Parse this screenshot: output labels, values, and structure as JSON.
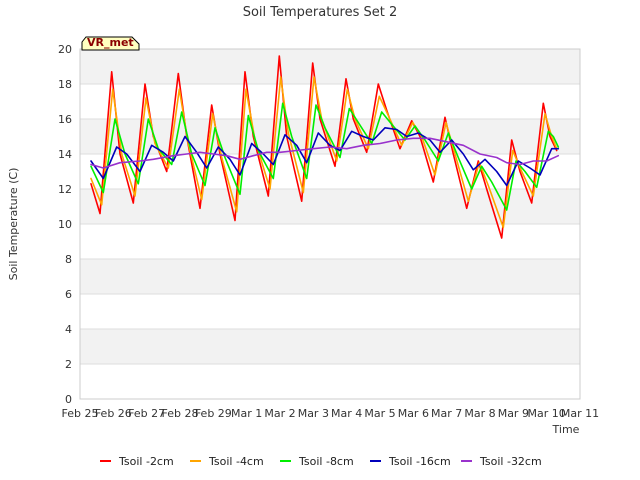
{
  "chart_data": {
    "type": "line",
    "title": "Soil Temperatures Set 2",
    "xlabel": "Time",
    "ylabel": "Soil Temperature (C)",
    "badge": "VR_met",
    "ylim": [
      0,
      20
    ],
    "yticks": [
      0,
      2,
      4,
      6,
      8,
      10,
      12,
      14,
      16,
      18,
      20
    ],
    "xlim": [
      0,
      15
    ],
    "xticks": [
      {
        "pos": 0,
        "label": "Feb 25"
      },
      {
        "pos": 1,
        "label": "Feb 26"
      },
      {
        "pos": 2,
        "label": "Feb 27"
      },
      {
        "pos": 3,
        "label": "Feb 28"
      },
      {
        "pos": 4,
        "label": "Feb 29"
      },
      {
        "pos": 5,
        "label": "Mar 1"
      },
      {
        "pos": 6,
        "label": "Mar 2"
      },
      {
        "pos": 7,
        "label": "Mar 3"
      },
      {
        "pos": 8,
        "label": "Mar 4"
      },
      {
        "pos": 9,
        "label": "Mar 5"
      },
      {
        "pos": 10,
        "label": "Mar 6"
      },
      {
        "pos": 11,
        "label": "Mar 7"
      },
      {
        "pos": 12,
        "label": "Mar 8"
      },
      {
        "pos": 13,
        "label": "Mar 9"
      },
      {
        "pos": 14,
        "label": "Mar 10"
      },
      {
        "pos": 15,
        "label": "Mar 11"
      }
    ],
    "grid": "horizontal bands",
    "legend_position": "bottom",
    "series": [
      {
        "name": "Tsoil -2cm",
        "color": "#ff0000",
        "points": [
          [
            0.33,
            12.3
          ],
          [
            0.6,
            10.6
          ],
          [
            0.95,
            18.7
          ],
          [
            1.2,
            14.0
          ],
          [
            1.6,
            11.2
          ],
          [
            1.95,
            18.0
          ],
          [
            2.2,
            15.0
          ],
          [
            2.6,
            13.0
          ],
          [
            2.95,
            18.6
          ],
          [
            3.2,
            15.0
          ],
          [
            3.6,
            10.9
          ],
          [
            3.95,
            16.8
          ],
          [
            4.2,
            14.0
          ],
          [
            4.65,
            10.2
          ],
          [
            4.95,
            18.7
          ],
          [
            5.2,
            15.0
          ],
          [
            5.65,
            11.6
          ],
          [
            5.98,
            19.6
          ],
          [
            6.2,
            15.0
          ],
          [
            6.65,
            11.3
          ],
          [
            6.98,
            19.2
          ],
          [
            7.2,
            16.0
          ],
          [
            7.65,
            13.3
          ],
          [
            7.98,
            18.3
          ],
          [
            8.2,
            16.0
          ],
          [
            8.6,
            14.1
          ],
          [
            8.95,
            18.0
          ],
          [
            9.2,
            16.5
          ],
          [
            9.6,
            14.3
          ],
          [
            9.95,
            15.9
          ],
          [
            10.2,
            15.0
          ],
          [
            10.6,
            12.4
          ],
          [
            10.95,
            16.1
          ],
          [
            11.2,
            14.0
          ],
          [
            11.6,
            10.9
          ],
          [
            11.95,
            13.6
          ],
          [
            12.2,
            12.0
          ],
          [
            12.65,
            9.2
          ],
          [
            12.95,
            14.8
          ],
          [
            13.2,
            13.0
          ],
          [
            13.55,
            11.2
          ],
          [
            13.9,
            16.9
          ],
          [
            14.1,
            15.0
          ],
          [
            14.3,
            14.2
          ]
        ]
      },
      {
        "name": "Tsoil -4cm",
        "color": "#ffa500",
        "points": [
          [
            0.33,
            12.6
          ],
          [
            0.65,
            11.1
          ],
          [
            0.98,
            17.7
          ],
          [
            1.25,
            14.0
          ],
          [
            1.65,
            11.6
          ],
          [
            1.98,
            17.2
          ],
          [
            2.25,
            14.6
          ],
          [
            2.65,
            13.2
          ],
          [
            2.98,
            17.7
          ],
          [
            3.25,
            14.6
          ],
          [
            3.65,
            11.4
          ],
          [
            3.98,
            16.3
          ],
          [
            4.25,
            13.8
          ],
          [
            4.7,
            10.7
          ],
          [
            4.98,
            17.7
          ],
          [
            5.25,
            14.8
          ],
          [
            5.7,
            12.0
          ],
          [
            6.02,
            18.4
          ],
          [
            6.25,
            15.2
          ],
          [
            6.7,
            11.8
          ],
          [
            7.02,
            18.4
          ],
          [
            7.25,
            16.0
          ],
          [
            7.7,
            13.6
          ],
          [
            8.02,
            17.7
          ],
          [
            8.25,
            16.0
          ],
          [
            8.65,
            14.3
          ],
          [
            8.98,
            17.3
          ],
          [
            9.25,
            16.2
          ],
          [
            9.65,
            14.5
          ],
          [
            9.98,
            15.8
          ],
          [
            10.25,
            15.0
          ],
          [
            10.65,
            12.8
          ],
          [
            10.98,
            15.8
          ],
          [
            11.25,
            14.0
          ],
          [
            11.65,
            11.3
          ],
          [
            11.98,
            13.5
          ],
          [
            12.25,
            12.2
          ],
          [
            12.7,
            9.8
          ],
          [
            12.98,
            14.2
          ],
          [
            13.25,
            13.0
          ],
          [
            13.6,
            11.6
          ],
          [
            13.95,
            16.3
          ],
          [
            14.15,
            15.0
          ],
          [
            14.3,
            14.3
          ]
        ]
      },
      {
        "name": "Tsoil -8cm",
        "color": "#00ee00",
        "points": [
          [
            0.33,
            13.3
          ],
          [
            0.7,
            11.8
          ],
          [
            1.05,
            16.0
          ],
          [
            1.35,
            14.0
          ],
          [
            1.75,
            12.3
          ],
          [
            2.05,
            16.0
          ],
          [
            2.35,
            14.3
          ],
          [
            2.75,
            13.4
          ],
          [
            3.05,
            16.4
          ],
          [
            3.35,
            14.0
          ],
          [
            3.75,
            12.2
          ],
          [
            4.05,
            15.5
          ],
          [
            4.35,
            13.8
          ],
          [
            4.8,
            11.7
          ],
          [
            5.05,
            16.2
          ],
          [
            5.35,
            14.2
          ],
          [
            5.8,
            12.6
          ],
          [
            6.08,
            16.9
          ],
          [
            6.35,
            15.0
          ],
          [
            6.8,
            12.6
          ],
          [
            7.08,
            16.8
          ],
          [
            7.35,
            15.5
          ],
          [
            7.8,
            13.8
          ],
          [
            8.08,
            16.6
          ],
          [
            8.35,
            15.8
          ],
          [
            8.75,
            14.6
          ],
          [
            9.05,
            16.4
          ],
          [
            9.35,
            15.7
          ],
          [
            9.75,
            14.8
          ],
          [
            10.05,
            15.6
          ],
          [
            10.35,
            14.8
          ],
          [
            10.75,
            13.6
          ],
          [
            11.05,
            15.2
          ],
          [
            11.35,
            13.8
          ],
          [
            11.75,
            12.0
          ],
          [
            12.05,
            13.3
          ],
          [
            12.35,
            12.4
          ],
          [
            12.8,
            10.8
          ],
          [
            13.08,
            13.6
          ],
          [
            13.35,
            13.0
          ],
          [
            13.7,
            12.1
          ],
          [
            14.05,
            15.3
          ],
          [
            14.2,
            15.0
          ],
          [
            14.35,
            14.4
          ]
        ]
      },
      {
        "name": "Tsoil -16cm",
        "color": "#0000bb",
        "points": [
          [
            0.33,
            13.6
          ],
          [
            0.7,
            12.6
          ],
          [
            1.1,
            14.4
          ],
          [
            1.4,
            14.0
          ],
          [
            1.8,
            13.0
          ],
          [
            2.15,
            14.5
          ],
          [
            2.5,
            14.1
          ],
          [
            2.8,
            13.6
          ],
          [
            3.15,
            15.0
          ],
          [
            3.5,
            14.1
          ],
          [
            3.8,
            13.2
          ],
          [
            4.15,
            14.4
          ],
          [
            4.5,
            13.7
          ],
          [
            4.8,
            12.8
          ],
          [
            5.15,
            14.6
          ],
          [
            5.5,
            14.0
          ],
          [
            5.8,
            13.4
          ],
          [
            6.15,
            15.1
          ],
          [
            6.5,
            14.5
          ],
          [
            6.8,
            13.5
          ],
          [
            7.15,
            15.2
          ],
          [
            7.5,
            14.5
          ],
          [
            7.8,
            14.2
          ],
          [
            8.15,
            15.3
          ],
          [
            8.5,
            15.0
          ],
          [
            8.8,
            14.8
          ],
          [
            9.15,
            15.5
          ],
          [
            9.5,
            15.4
          ],
          [
            9.8,
            15.0
          ],
          [
            10.15,
            15.2
          ],
          [
            10.5,
            14.8
          ],
          [
            10.8,
            14.1
          ],
          [
            11.15,
            14.8
          ],
          [
            11.5,
            14.0
          ],
          [
            11.8,
            13.1
          ],
          [
            12.15,
            13.7
          ],
          [
            12.5,
            13.0
          ],
          [
            12.8,
            12.2
          ],
          [
            13.15,
            13.6
          ],
          [
            13.5,
            13.2
          ],
          [
            13.8,
            12.8
          ],
          [
            14.15,
            14.3
          ],
          [
            14.35,
            14.3
          ]
        ]
      },
      {
        "name": "Tsoil -32cm",
        "color": "#9932cc",
        "points": [
          [
            0.33,
            13.4
          ],
          [
            0.7,
            13.2
          ],
          [
            1.2,
            13.5
          ],
          [
            1.8,
            13.6
          ],
          [
            2.2,
            13.7
          ],
          [
            2.8,
            13.9
          ],
          [
            3.2,
            14.0
          ],
          [
            3.6,
            14.1
          ],
          [
            4.0,
            14.0
          ],
          [
            4.4,
            13.9
          ],
          [
            4.8,
            13.7
          ],
          [
            5.2,
            13.9
          ],
          [
            5.6,
            14.1
          ],
          [
            6.0,
            14.1
          ],
          [
            6.5,
            14.2
          ],
          [
            7.0,
            14.3
          ],
          [
            7.5,
            14.4
          ],
          [
            8.0,
            14.3
          ],
          [
            8.5,
            14.5
          ],
          [
            9.0,
            14.6
          ],
          [
            9.5,
            14.8
          ],
          [
            10.0,
            14.9
          ],
          [
            10.5,
            14.9
          ],
          [
            11.0,
            14.7
          ],
          [
            11.5,
            14.5
          ],
          [
            12.0,
            14.0
          ],
          [
            12.5,
            13.8
          ],
          [
            12.8,
            13.5
          ],
          [
            13.2,
            13.4
          ],
          [
            13.6,
            13.6
          ],
          [
            14.0,
            13.6
          ],
          [
            14.35,
            13.9
          ]
        ]
      }
    ]
  }
}
